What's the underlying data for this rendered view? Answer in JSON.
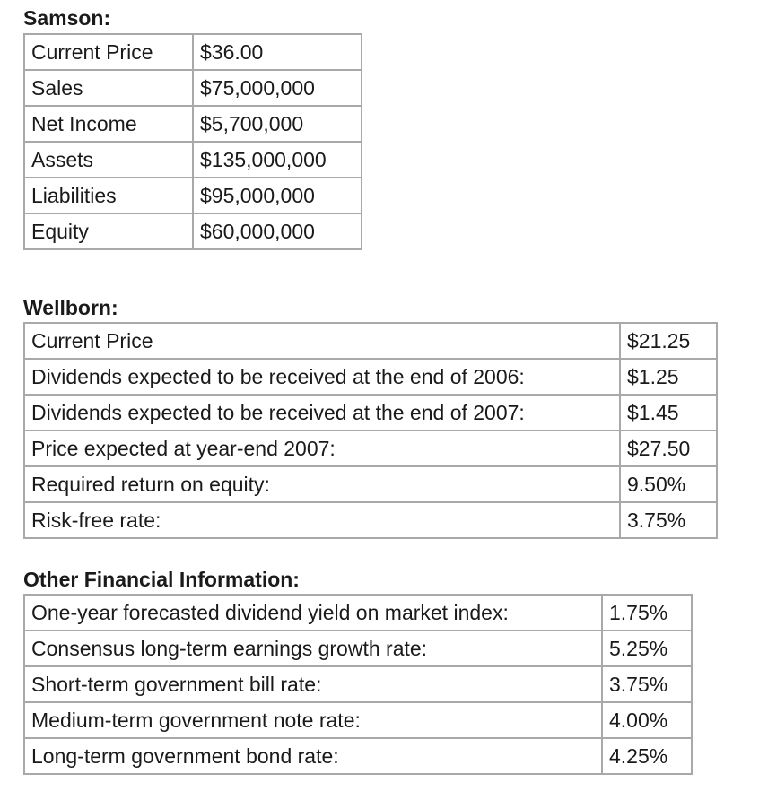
{
  "samson": {
    "title": "Samson:",
    "rows": [
      {
        "label": "Current Price",
        "value": "$36.00"
      },
      {
        "label": "Sales",
        "value": "$75,000,000"
      },
      {
        "label": "Net Income",
        "value": "$5,700,000"
      },
      {
        "label": "Assets",
        "value": "$135,000,000"
      },
      {
        "label": "Liabilities",
        "value": "$95,000,000"
      },
      {
        "label": "Equity",
        "value": "$60,000,000"
      }
    ]
  },
  "wellborn": {
    "title": "Wellborn:",
    "rows": [
      {
        "label": "Current Price",
        "value": "$21.25"
      },
      {
        "label": "Dividends expected to be received at the end of 2006:",
        "value": "$1.25"
      },
      {
        "label": "Dividends expected to be received at the end of 2007:",
        "value": "$1.45"
      },
      {
        "label": "Price expected at year-end 2007:",
        "value": "$27.50"
      },
      {
        "label": "Required return on equity:",
        "value": "9.50%"
      },
      {
        "label": "Risk-free rate:",
        "value": "3.75%"
      }
    ]
  },
  "other": {
    "title": "Other Financial Information:",
    "rows": [
      {
        "label": "One-year forecasted dividend yield on market index:",
        "value": "1.75%"
      },
      {
        "label": "Consensus long-term earnings growth rate:",
        "value": "5.25%"
      },
      {
        "label": "Short-term government bill rate:",
        "value": "3.75%"
      },
      {
        "label": "Medium-term government note rate:",
        "value": "4.00%"
      },
      {
        "label": "Long-term government bond rate:",
        "value": "4.25%"
      }
    ]
  }
}
